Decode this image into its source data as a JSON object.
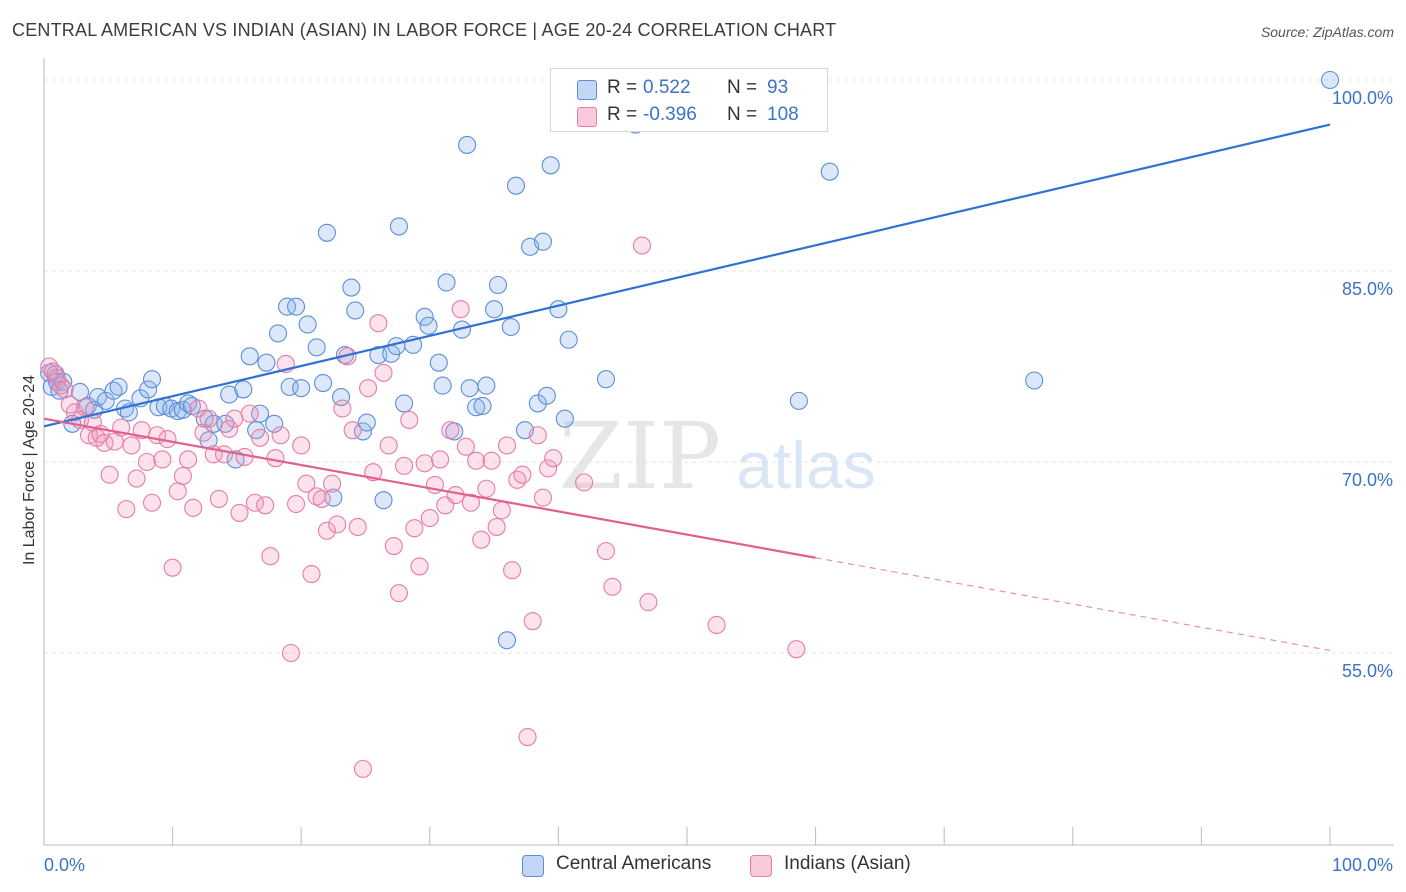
{
  "title": "CENTRAL AMERICAN VS INDIAN (ASIAN) IN LABOR FORCE | AGE 20-24 CORRELATION CHART",
  "source": "Source: ZipAtlas.com",
  "watermark": {
    "zip": "ZIP",
    "atlas": "atlas"
  },
  "legend": {
    "r_label": "R =",
    "n_label": "N =",
    "series": [
      {
        "r": "0.522",
        "n": "93",
        "color": "#5b8fd9"
      },
      {
        "r": "-0.396",
        "n": "108",
        "color": "#e87da4"
      }
    ]
  },
  "bottom_legend": [
    "Central Americans",
    "Indians (Asian)"
  ],
  "colors": {
    "blue": "#5b8fd9",
    "blue_line": "#2f72d4",
    "pink": "#e87da4",
    "pink_line": "#e0608e",
    "value_text": "#3b73c8",
    "grid": "#e4e4e4"
  },
  "chart_data": {
    "type": "scatter",
    "xlabel": "",
    "ylabel": "In Labor Force | Age 20-24",
    "xlim": [
      0,
      100
    ],
    "ylim": [
      40,
      102
    ],
    "x_tick_labels": [
      "0.0%",
      "100.0%"
    ],
    "y_ticks": [
      55,
      70,
      85,
      100
    ],
    "y_tick_labels": [
      "55.0%",
      "70.0%",
      "85.0%",
      "100.0%"
    ],
    "grid": true,
    "series": [
      {
        "name": "Central Americans",
        "color": "#5b8fd9",
        "trend": {
          "x": [
            0,
            100
          ],
          "y": [
            72.8,
            96.5
          ],
          "dash_from": 100
        },
        "points": [
          [
            0.4,
            77
          ],
          [
            0.6,
            75.9
          ],
          [
            0.9,
            76.9
          ],
          [
            1.0,
            76.3
          ],
          [
            1.2,
            75.6
          ],
          [
            1.5,
            76.3
          ],
          [
            2.2,
            73
          ],
          [
            2.8,
            75.5
          ],
          [
            3.4,
            74.4
          ],
          [
            3.9,
            74.1
          ],
          [
            4.2,
            75.1
          ],
          [
            4.8,
            74.8
          ],
          [
            5.4,
            75.6
          ],
          [
            5.8,
            75.9
          ],
          [
            6.3,
            74.2
          ],
          [
            6.6,
            73.9
          ],
          [
            7.5,
            75
          ],
          [
            8.1,
            75.7
          ],
          [
            8.4,
            76.5
          ],
          [
            8.9,
            74.3
          ],
          [
            9.4,
            74.4
          ],
          [
            9.9,
            74.2
          ],
          [
            10.4,
            74
          ],
          [
            10.8,
            74.1
          ],
          [
            11.2,
            74.6
          ],
          [
            11.5,
            74.4
          ],
          [
            12.5,
            73.4
          ],
          [
            12.8,
            71.7
          ],
          [
            13.2,
            73
          ],
          [
            14.1,
            73
          ],
          [
            14.4,
            75.3
          ],
          [
            14.9,
            70.2
          ],
          [
            15.5,
            75.7
          ],
          [
            16,
            78.3
          ],
          [
            16.5,
            72.5
          ],
          [
            16.8,
            73.8
          ],
          [
            17.3,
            77.8
          ],
          [
            17.9,
            73
          ],
          [
            18.2,
            80.1
          ],
          [
            18.9,
            82.2
          ],
          [
            19.1,
            75.9
          ],
          [
            19.6,
            82.2
          ],
          [
            20,
            75.8
          ],
          [
            20.5,
            80.8
          ],
          [
            21.2,
            79
          ],
          [
            21.7,
            76.2
          ],
          [
            22,
            88
          ],
          [
            22.5,
            67.2
          ],
          [
            23.1,
            75.1
          ],
          [
            23.4,
            78.4
          ],
          [
            23.9,
            83.7
          ],
          [
            24.2,
            81.9
          ],
          [
            24.8,
            72.4
          ],
          [
            25.1,
            73.1
          ],
          [
            26,
            78.4
          ],
          [
            26.4,
            67
          ],
          [
            27,
            78.5
          ],
          [
            27.4,
            79.1
          ],
          [
            27.6,
            88.5
          ],
          [
            28,
            74.6
          ],
          [
            28.7,
            79.2
          ],
          [
            29.6,
            81.4
          ],
          [
            29.9,
            80.7
          ],
          [
            30.7,
            77.8
          ],
          [
            31,
            76
          ],
          [
            31.3,
            84.1
          ],
          [
            31.9,
            72.4
          ],
          [
            32.5,
            80.4
          ],
          [
            32.9,
            94.9
          ],
          [
            33.1,
            75.8
          ],
          [
            33.6,
            74.3
          ],
          [
            34.1,
            74.4
          ],
          [
            34.4,
            76
          ],
          [
            35,
            82
          ],
          [
            35.3,
            83.9
          ],
          [
            36,
            56
          ],
          [
            36.3,
            80.6
          ],
          [
            36.7,
            91.7
          ],
          [
            37.4,
            72.5
          ],
          [
            37.8,
            86.9
          ],
          [
            38.4,
            74.6
          ],
          [
            38.8,
            87.3
          ],
          [
            39.1,
            75.2
          ],
          [
            39.4,
            93.3
          ],
          [
            40,
            82
          ],
          [
            40.5,
            73.4
          ],
          [
            40.8,
            79.6
          ],
          [
            43.7,
            76.5
          ],
          [
            46,
            96.5
          ],
          [
            58.7,
            74.8
          ],
          [
            61.1,
            92.8
          ],
          [
            77,
            76.4
          ],
          [
            100,
            100
          ]
        ]
      },
      {
        "name": "Indians (Asian)",
        "color": "#e87da4",
        "trend": {
          "x": [
            0,
            100
          ],
          "y": [
            73.4,
            55.2
          ],
          "dash_from": 60
        },
        "points": [
          [
            0.4,
            77.5
          ],
          [
            0.7,
            77.1
          ],
          [
            1,
            76.6
          ],
          [
            1.3,
            76
          ],
          [
            1.6,
            75.7
          ],
          [
            2,
            74.5
          ],
          [
            2.4,
            73.9
          ],
          [
            2.8,
            73.3
          ],
          [
            3.2,
            74.3
          ],
          [
            3.5,
            72.1
          ],
          [
            3.8,
            73.1
          ],
          [
            4.1,
            71.9
          ],
          [
            4.4,
            72.2
          ],
          [
            4.7,
            71.5
          ],
          [
            5.1,
            69
          ],
          [
            5.5,
            71.6
          ],
          [
            6,
            72.7
          ],
          [
            6.4,
            66.3
          ],
          [
            6.8,
            71.3
          ],
          [
            7.2,
            68.7
          ],
          [
            7.6,
            72.5
          ],
          [
            8,
            70
          ],
          [
            8.4,
            66.8
          ],
          [
            8.8,
            72.1
          ],
          [
            9.2,
            70.2
          ],
          [
            9.6,
            71.8
          ],
          [
            10,
            61.7
          ],
          [
            10.4,
            67.7
          ],
          [
            10.8,
            68.9
          ],
          [
            11.2,
            70.2
          ],
          [
            11.6,
            66.4
          ],
          [
            12,
            74.2
          ],
          [
            12.4,
            72.3
          ],
          [
            12.8,
            73.4
          ],
          [
            13.2,
            70.6
          ],
          [
            13.6,
            67.1
          ],
          [
            14,
            70.6
          ],
          [
            14.4,
            72.6
          ],
          [
            14.8,
            73.4
          ],
          [
            15.2,
            66
          ],
          [
            15.6,
            70.4
          ],
          [
            16,
            73.8
          ],
          [
            16.4,
            66.8
          ],
          [
            16.8,
            71.9
          ],
          [
            17.2,
            66.6
          ],
          [
            17.6,
            62.6
          ],
          [
            18,
            70.3
          ],
          [
            18.4,
            72.1
          ],
          [
            18.8,
            77.7
          ],
          [
            19.2,
            55
          ],
          [
            19.6,
            66.7
          ],
          [
            20,
            71.3
          ],
          [
            20.4,
            68.3
          ],
          [
            20.8,
            61.2
          ],
          [
            21.2,
            67.3
          ],
          [
            21.6,
            67.1
          ],
          [
            22,
            64.6
          ],
          [
            22.4,
            68.3
          ],
          [
            22.8,
            65.1
          ],
          [
            23.2,
            74.2
          ],
          [
            23.6,
            78.3
          ],
          [
            24,
            72.5
          ],
          [
            24.4,
            64.9
          ],
          [
            24.8,
            45.9
          ],
          [
            25.2,
            75.8
          ],
          [
            25.6,
            69.2
          ],
          [
            26,
            80.9
          ],
          [
            26.4,
            77
          ],
          [
            26.8,
            71.3
          ],
          [
            27.2,
            63.4
          ],
          [
            27.6,
            59.7
          ],
          [
            28,
            69.7
          ],
          [
            28.4,
            73.3
          ],
          [
            28.8,
            64.8
          ],
          [
            29.2,
            61.8
          ],
          [
            29.6,
            69.9
          ],
          [
            30,
            65.6
          ],
          [
            30.4,
            68.2
          ],
          [
            30.8,
            70.2
          ],
          [
            31.2,
            66.6
          ],
          [
            31.6,
            72.5
          ],
          [
            32,
            67.4
          ],
          [
            32.4,
            82
          ],
          [
            32.8,
            71.2
          ],
          [
            33.2,
            66.8
          ],
          [
            33.6,
            70.1
          ],
          [
            34,
            63.9
          ],
          [
            34.4,
            67.9
          ],
          [
            34.8,
            70.1
          ],
          [
            35.2,
            64.9
          ],
          [
            35.6,
            66.2
          ],
          [
            36,
            71.3
          ],
          [
            36.4,
            61.5
          ],
          [
            36.8,
            68.6
          ],
          [
            37.2,
            69
          ],
          [
            37.6,
            48.4
          ],
          [
            38,
            57.5
          ],
          [
            38.4,
            72.1
          ],
          [
            38.8,
            67.2
          ],
          [
            39.2,
            69.5
          ],
          [
            39.6,
            70.3
          ],
          [
            42,
            68.4
          ],
          [
            43.7,
            63
          ],
          [
            44.2,
            60.2
          ],
          [
            47,
            59
          ],
          [
            52.3,
            57.2
          ],
          [
            58.5,
            55.3
          ],
          [
            46.5,
            87
          ]
        ]
      }
    ]
  }
}
